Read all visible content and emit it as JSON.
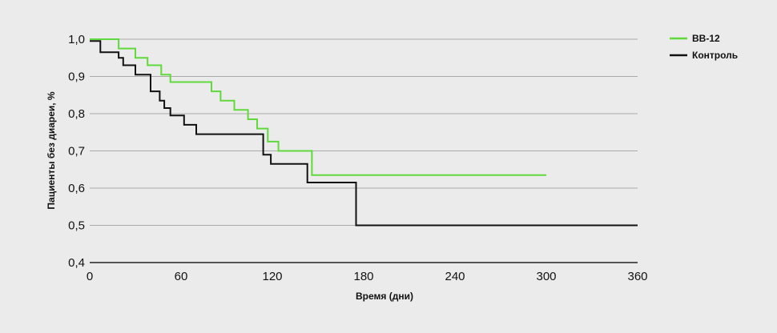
{
  "chart_data": {
    "type": "line",
    "step": true,
    "xlabel": "Время (дни)",
    "ylabel": "Пациенты без диареи, %",
    "xlim": [
      0,
      360
    ],
    "ylim": [
      0.4,
      1.0
    ],
    "x_ticks": [
      0,
      60,
      120,
      180,
      240,
      300,
      360
    ],
    "y_ticks": [
      0.4,
      0.5,
      0.6,
      0.7,
      0.8,
      0.9,
      1.0
    ],
    "x_tick_labels": [
      "0",
      "60",
      "120",
      "180",
      "240",
      "300",
      "360"
    ],
    "y_tick_labels": [
      "0,4",
      "0,5",
      "0,6",
      "0,7",
      "0,8",
      "0,9",
      "1,0"
    ],
    "grid": "horizontal",
    "legend_position": "top-right",
    "series": [
      {
        "name": "BB-12",
        "color": "#5fd93b",
        "points": [
          [
            0,
            1.0
          ],
          [
            19,
            1.0
          ],
          [
            19,
            0.975
          ],
          [
            30,
            0.975
          ],
          [
            30,
            0.95
          ],
          [
            38,
            0.95
          ],
          [
            38,
            0.93
          ],
          [
            47,
            0.93
          ],
          [
            47,
            0.905
          ],
          [
            53,
            0.905
          ],
          [
            53,
            0.885
          ],
          [
            80,
            0.885
          ],
          [
            80,
            0.86
          ],
          [
            86,
            0.86
          ],
          [
            86,
            0.835
          ],
          [
            95,
            0.835
          ],
          [
            95,
            0.81
          ],
          [
            104,
            0.81
          ],
          [
            104,
            0.785
          ],
          [
            110,
            0.785
          ],
          [
            110,
            0.76
          ],
          [
            117,
            0.76
          ],
          [
            117,
            0.725
          ],
          [
            124,
            0.725
          ],
          [
            124,
            0.7
          ],
          [
            146,
            0.7
          ],
          [
            146,
            0.635
          ],
          [
            300,
            0.635
          ]
        ]
      },
      {
        "name": "Контроль",
        "color": "#111111",
        "points": [
          [
            0,
            0.995
          ],
          [
            7,
            0.995
          ],
          [
            7,
            0.965
          ],
          [
            19,
            0.965
          ],
          [
            19,
            0.95
          ],
          [
            22,
            0.95
          ],
          [
            22,
            0.93
          ],
          [
            30,
            0.93
          ],
          [
            30,
            0.905
          ],
          [
            40,
            0.905
          ],
          [
            40,
            0.86
          ],
          [
            46,
            0.86
          ],
          [
            46,
            0.835
          ],
          [
            49,
            0.835
          ],
          [
            49,
            0.815
          ],
          [
            53,
            0.815
          ],
          [
            53,
            0.795
          ],
          [
            62,
            0.795
          ],
          [
            62,
            0.77
          ],
          [
            70,
            0.77
          ],
          [
            70,
            0.745
          ],
          [
            114,
            0.745
          ],
          [
            114,
            0.69
          ],
          [
            119,
            0.69
          ],
          [
            119,
            0.665
          ],
          [
            143,
            0.665
          ],
          [
            143,
            0.615
          ],
          [
            175,
            0.615
          ],
          [
            175,
            0.5
          ],
          [
            360,
            0.5
          ]
        ]
      }
    ]
  }
}
